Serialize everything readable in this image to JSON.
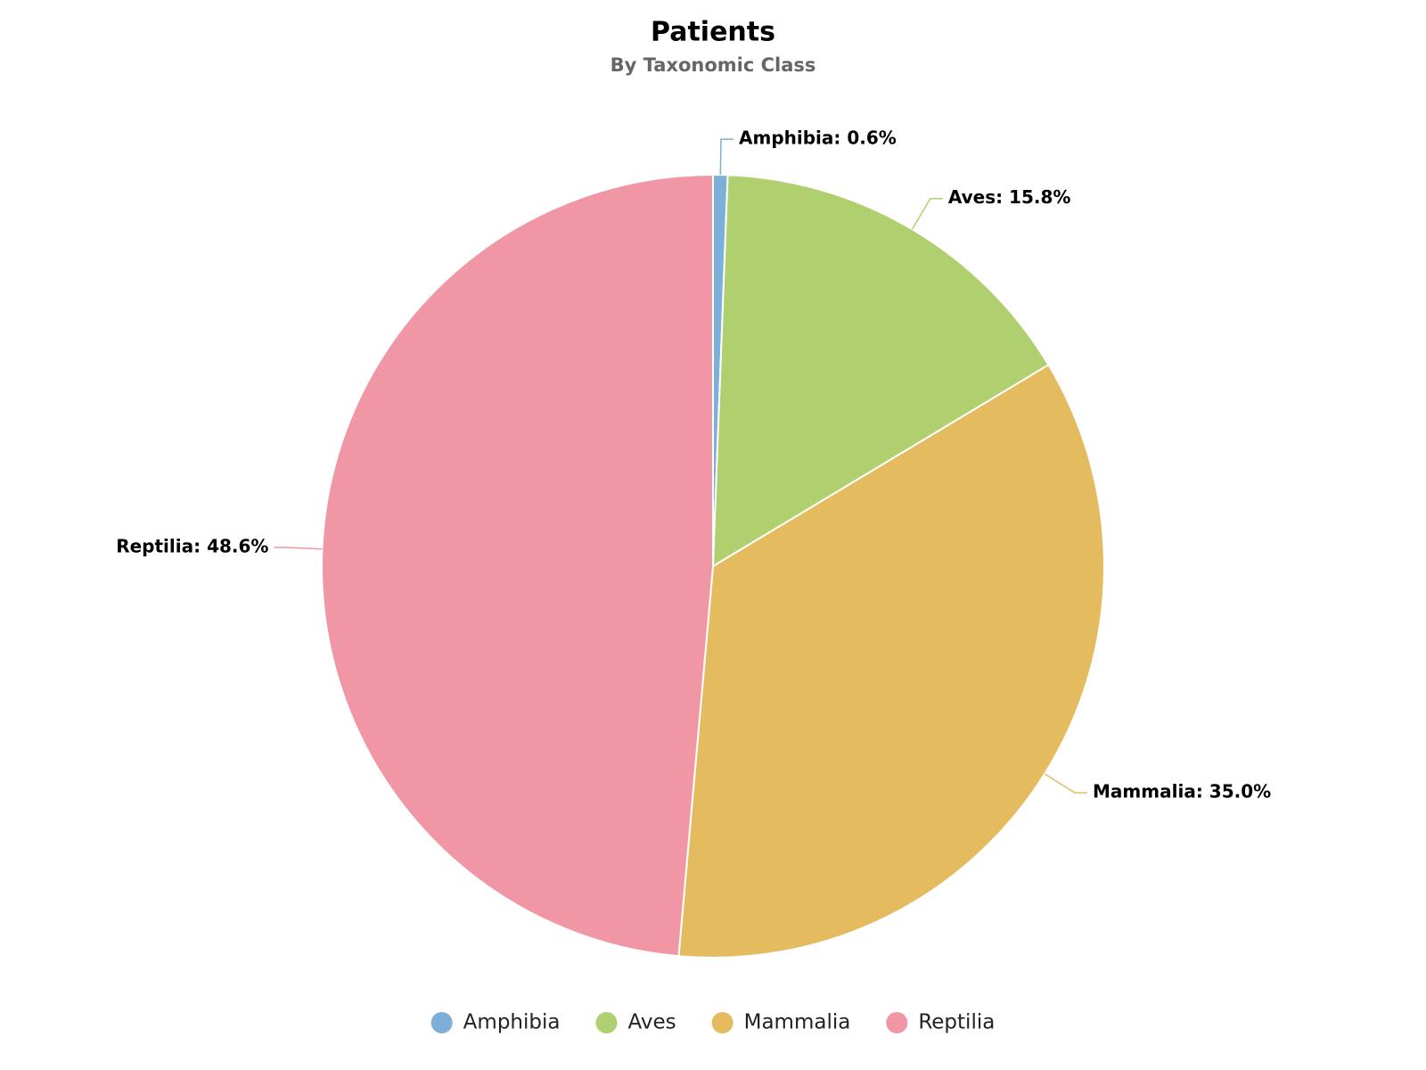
{
  "chart_data": {
    "type": "pie",
    "title": "Patients",
    "subtitle": "By Taxonomic Class",
    "categories": [
      "Amphibia",
      "Aves",
      "Mammalia",
      "Reptilia"
    ],
    "values": [
      0.6,
      15.8,
      35.0,
      48.6
    ],
    "value_labels": [
      "Amphibia: 0.6%",
      "Aves: 15.8%",
      "Mammalia: 35.0%",
      "Reptilia: 48.6%"
    ],
    "colors": [
      "#7cb0d8",
      "#b0cf6e",
      "#e5bb60",
      "#f096a4"
    ],
    "legend": "bottom"
  }
}
